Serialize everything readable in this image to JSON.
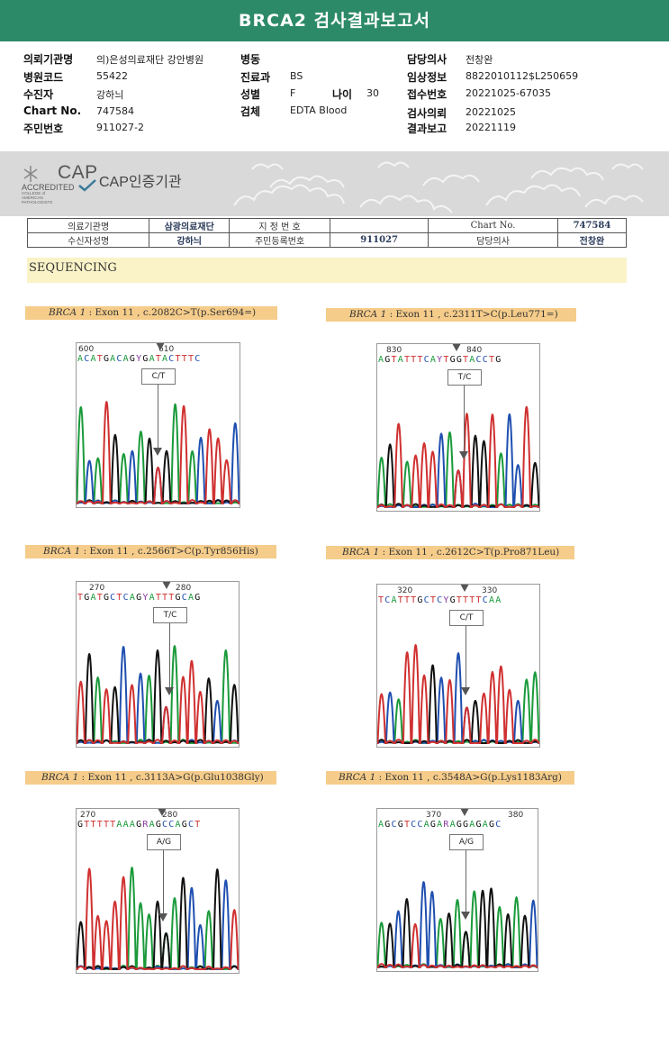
{
  "header": {
    "title": "BRCA2 검사결과보고서"
  },
  "info": {
    "col1": [
      {
        "label": "의뢰기관명",
        "value": "의)은성의료재단 강안병원"
      },
      {
        "label": "병원코드",
        "value": "55422"
      },
      {
        "label": "수진자",
        "value": "강하늬"
      },
      {
        "label": "Chart No.",
        "value": "747584"
      },
      {
        "label": "주민번호",
        "value": "911027-2"
      }
    ],
    "col2": [
      {
        "label": "병동",
        "value": ""
      },
      {
        "label": "진료과",
        "value": "BS"
      },
      {
        "label": "성별",
        "value": "F"
      },
      {
        "label": "검체",
        "value": "EDTA Blood"
      }
    ],
    "age": {
      "label": "나이",
      "value": "30"
    },
    "col3": [
      {
        "label": "담당의사",
        "value": "전창완"
      },
      {
        "label": "임상정보",
        "value": "8822010112$L250659"
      },
      {
        "label": "접수번호",
        "value": "20221025-67035"
      },
      {
        "label": "검사의뢰",
        "value": "20221025"
      },
      {
        "label": "결과보고",
        "value": "20221119"
      }
    ]
  },
  "cap": {
    "logo_text": "CAP",
    "accredited": "ACCREDITED",
    "college": "COLLEGE of AMERICAN PATHOLOGISTS",
    "cert": "CAP인증기관"
  },
  "table": {
    "r1": [
      "의료기관명",
      "삼광의료재단",
      "지 정 번 호",
      "",
      "Chart No.",
      "747584"
    ],
    "r2": [
      "수신자성명",
      "강하늬",
      "주민등록번호",
      "911027",
      "담당의사",
      "전창완"
    ]
  },
  "sequencing": {
    "title": "SEQUENCING"
  },
  "panels": [
    {
      "gene": "BRCA 1",
      "label": " : Exon 11 , c.2082C>T(p.Ser694=)",
      "pos1": "600",
      "pos2": "610",
      "seq": "ACATGACAGYGATACTTTC",
      "call": "C/T"
    },
    {
      "gene": "BRCA 1",
      "label": " : Exon 11 , c.2311T>C(p.Leu771=)",
      "pos1": "830",
      "pos2": "840",
      "seq": "AGTATTTCAYTGGTACCTG",
      "call": "T/C"
    },
    {
      "gene": "BRCA 1",
      "label": " : Exon 11 , c.2566T>C(p.Tyr856His)",
      "pos1": "270",
      "pos2": "280",
      "seq": "TGATGCTCAGYATTTGCAG",
      "call": "T/C"
    },
    {
      "gene": "BRCA 1",
      "label": " : Exon 11 , c.2612C>T(p.Pro871Leu)",
      "pos1": "320",
      "pos2": "330",
      "seq": "TCATTTGCTCYGTTTTCAA",
      "call": "C/T"
    },
    {
      "gene": "BRCA 1",
      "label": " : Exon 11 , c.3113A>G(p.Glu1038Gly)",
      "pos1": "270",
      "pos2": "280",
      "seq": "GTTTTTAAAGRAGCCAGCT",
      "call": "A/G"
    },
    {
      "gene": "BRCA 1",
      "label": " : Exon 11 , c.3548A>G(p.Lys1183Arg)",
      "pos1": "370",
      "pos2": "380",
      "seq": "AGCGTCCAGARAGGAGAGC",
      "call": "A/G"
    }
  ]
}
